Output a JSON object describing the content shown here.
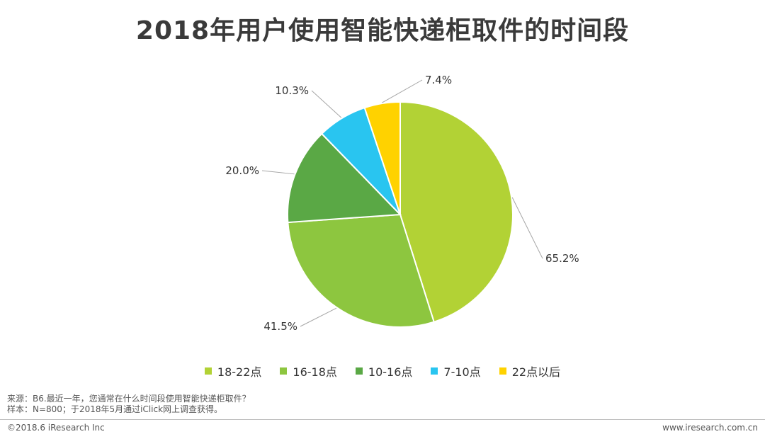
{
  "chart_data": {
    "type": "pie",
    "title": "2018年用户使用智能快递柜取件的时间段",
    "categories": [
      "18-22点",
      "16-18点",
      "10-16点",
      "7-10点",
      "22点以后"
    ],
    "values": [
      65.2,
      41.5,
      20.0,
      10.3,
      7.4
    ],
    "data_labels": [
      "65.2%",
      "41.5%",
      "20.0%",
      "10.3%",
      "7.4%"
    ],
    "colors": [
      "#b2d235",
      "#8dc63f",
      "#5aa845",
      "#29c5f0",
      "#ffd200"
    ],
    "legend_position": "bottom"
  },
  "footnotes": {
    "source": "来源：B6.最近一年，您通常在什么时间段使用智能快递柜取件？",
    "sample": "样本：N=800；于2018年5月通过iClick网上调查获得。"
  },
  "footer": {
    "copyright": "©2018.6 iResearch Inc",
    "website": "www.iresearch.com.cn"
  }
}
